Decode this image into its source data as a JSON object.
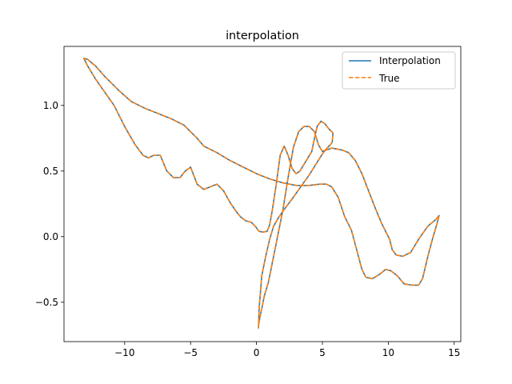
{
  "chart_data": {
    "type": "line",
    "title": "interpolation",
    "xlabel": "",
    "ylabel": "",
    "xlim": [
      -14.6,
      15.5
    ],
    "ylim": [
      -0.8,
      1.45
    ],
    "xticks": [
      -10,
      -5,
      0,
      5,
      10,
      15
    ],
    "xtick_labels": [
      "−10",
      "−5",
      "0",
      "5",
      "10",
      "15"
    ],
    "yticks": [
      -0.5,
      0.0,
      0.5,
      1.0
    ],
    "ytick_labels": [
      "−0.5",
      "0.0",
      "0.5",
      "1.0"
    ],
    "grid": false,
    "legend_position": "upper right",
    "series": [
      {
        "name": "Interpolation",
        "color": "#1f77b4",
        "style": "solid",
        "points": [
          [
            0.15,
            -0.7
          ],
          [
            0.2,
            -0.55
          ],
          [
            0.4,
            -0.3
          ],
          [
            0.7,
            -0.15
          ],
          [
            1.0,
            -0.02
          ],
          [
            1.3,
            0.08
          ],
          [
            1.7,
            0.15
          ],
          [
            2.2,
            0.22
          ],
          [
            2.8,
            0.3
          ],
          [
            3.5,
            0.4
          ],
          [
            4.0,
            0.47
          ],
          [
            4.5,
            0.55
          ],
          [
            5.0,
            0.63
          ],
          [
            5.3,
            0.67
          ],
          [
            5.6,
            0.7
          ],
          [
            5.75,
            0.72
          ],
          [
            5.8,
            0.79
          ],
          [
            5.5,
            0.82
          ],
          [
            5.2,
            0.86
          ],
          [
            4.9,
            0.88
          ],
          [
            4.6,
            0.84
          ],
          [
            4.4,
            0.75
          ],
          [
            4.2,
            0.65
          ],
          [
            3.9,
            0.6
          ],
          [
            3.6,
            0.55
          ],
          [
            3.3,
            0.5
          ],
          [
            3.0,
            0.48
          ],
          [
            2.7,
            0.52
          ],
          [
            2.4,
            0.62
          ],
          [
            2.1,
            0.69
          ],
          [
            1.8,
            0.62
          ],
          [
            1.5,
            0.4
          ],
          [
            1.2,
            0.2
          ],
          [
            1.0,
            0.09
          ],
          [
            0.8,
            0.04
          ],
          [
            0.5,
            0.035
          ],
          [
            0.2,
            0.04
          ],
          [
            -0.1,
            0.08
          ],
          [
            -0.4,
            0.11
          ],
          [
            -0.8,
            0.12
          ],
          [
            -1.2,
            0.15
          ],
          [
            -1.6,
            0.2
          ],
          [
            -2.0,
            0.26
          ],
          [
            -2.5,
            0.35
          ],
          [
            -3.0,
            0.4
          ],
          [
            -3.5,
            0.38
          ],
          [
            -4.0,
            0.36
          ],
          [
            -4.5,
            0.4
          ],
          [
            -5.0,
            0.53
          ],
          [
            -5.4,
            0.5
          ],
          [
            -5.8,
            0.45
          ],
          [
            -6.3,
            0.45
          ],
          [
            -6.8,
            0.5
          ],
          [
            -7.3,
            0.62
          ],
          [
            -7.8,
            0.62
          ],
          [
            -8.2,
            0.6
          ],
          [
            -8.6,
            0.62
          ],
          [
            -9.2,
            0.7
          ],
          [
            -10.0,
            0.84
          ],
          [
            -10.8,
            1.0
          ],
          [
            -11.5,
            1.1
          ],
          [
            -12.2,
            1.2
          ],
          [
            -12.8,
            1.3
          ],
          [
            -13.1,
            1.36
          ],
          [
            -12.8,
            1.35
          ],
          [
            -12.2,
            1.3
          ],
          [
            -11.5,
            1.22
          ],
          [
            -10.5,
            1.12
          ],
          [
            -9.5,
            1.03
          ],
          [
            -8.5,
            0.98
          ],
          [
            -7.5,
            0.94
          ],
          [
            -6.5,
            0.9
          ],
          [
            -5.5,
            0.85
          ],
          [
            -4.5,
            0.75
          ],
          [
            -4.0,
            0.69
          ],
          [
            -3.0,
            0.64
          ],
          [
            -2.0,
            0.58
          ],
          [
            -1.0,
            0.53
          ],
          [
            0.0,
            0.48
          ],
          [
            1.0,
            0.44
          ],
          [
            2.0,
            0.41
          ],
          [
            3.0,
            0.39
          ],
          [
            4.0,
            0.39
          ],
          [
            4.8,
            0.4
          ],
          [
            5.3,
            0.4
          ],
          [
            5.7,
            0.38
          ],
          [
            6.2,
            0.3
          ],
          [
            6.7,
            0.15
          ],
          [
            7.2,
            0.05
          ],
          [
            7.6,
            -0.1
          ],
          [
            8.0,
            -0.25
          ],
          [
            8.3,
            -0.31
          ],
          [
            8.8,
            -0.32
          ],
          [
            9.3,
            -0.29
          ],
          [
            9.8,
            -0.25
          ],
          [
            10.2,
            -0.26
          ],
          [
            10.7,
            -0.3
          ],
          [
            11.2,
            -0.36
          ],
          [
            11.8,
            -0.37
          ],
          [
            12.3,
            -0.37
          ],
          [
            12.6,
            -0.32
          ],
          [
            13.0,
            -0.15
          ],
          [
            13.4,
            0.0
          ],
          [
            13.7,
            0.1
          ],
          [
            13.85,
            0.16
          ],
          [
            13.6,
            0.13
          ],
          [
            13.0,
            0.08
          ],
          [
            12.3,
            -0.02
          ],
          [
            11.7,
            -0.12
          ],
          [
            11.1,
            -0.15
          ],
          [
            10.6,
            -0.14
          ],
          [
            10.3,
            -0.1
          ],
          [
            10.1,
            -0.02
          ],
          [
            9.8,
            0.04
          ],
          [
            9.5,
            0.1
          ],
          [
            9.0,
            0.22
          ],
          [
            8.5,
            0.35
          ],
          [
            8.0,
            0.48
          ],
          [
            7.5,
            0.58
          ],
          [
            7.0,
            0.64
          ],
          [
            6.5,
            0.66
          ],
          [
            6.0,
            0.67
          ],
          [
            5.7,
            0.675
          ],
          [
            5.3,
            0.66
          ],
          [
            5.0,
            0.65
          ],
          [
            4.7,
            0.7
          ],
          [
            4.4,
            0.8
          ],
          [
            4.0,
            0.84
          ],
          [
            3.6,
            0.84
          ],
          [
            3.2,
            0.8
          ],
          [
            2.8,
            0.68
          ],
          [
            2.4,
            0.45
          ],
          [
            2.0,
            0.2
          ],
          [
            1.6,
            0.0
          ],
          [
            1.2,
            -0.2
          ],
          [
            0.9,
            -0.35
          ],
          [
            0.6,
            -0.45
          ],
          [
            0.4,
            -0.55
          ],
          [
            0.25,
            -0.62
          ],
          [
            0.15,
            -0.68
          ]
        ]
      },
      {
        "name": "True",
        "color": "#ff7f0e",
        "style": "dashed",
        "same_as": "Interpolation"
      }
    ]
  }
}
